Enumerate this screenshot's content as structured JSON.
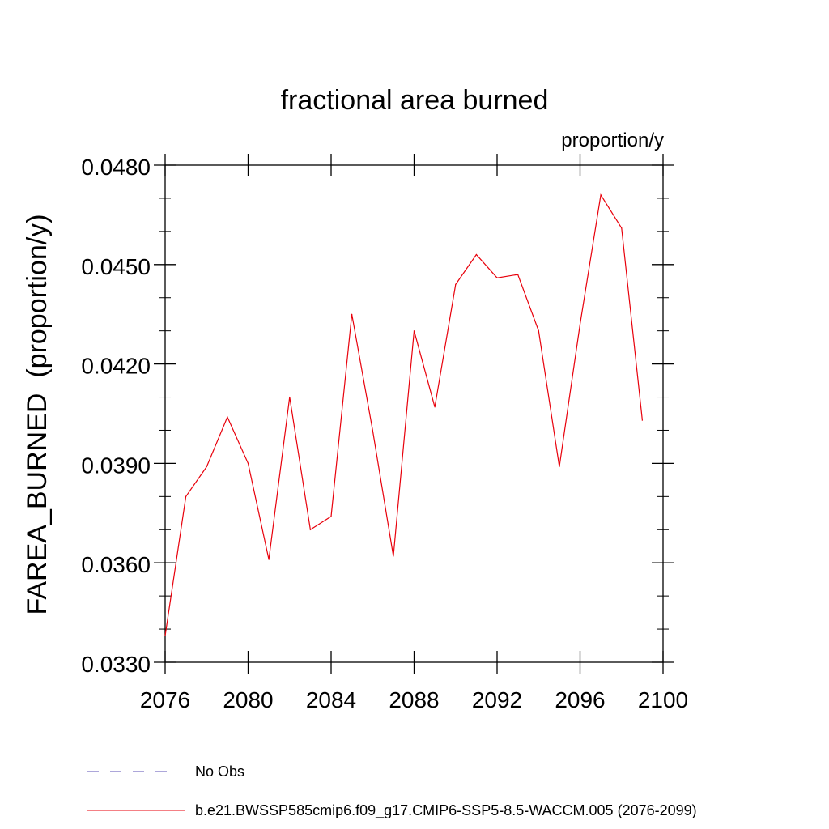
{
  "chart_data": {
    "type": "line",
    "title": "fractional area burned",
    "units_label": "proportion/y",
    "ylabel": "FAREA_BURNED  (proportion/y)",
    "xlabel": "",
    "xlim": [
      2076,
      2100
    ],
    "ylim": [
      0.033,
      0.048
    ],
    "x_ticks": [
      2076,
      2080,
      2084,
      2088,
      2092,
      2096,
      2100
    ],
    "y_ticks": [
      "0.0330",
      "0.0360",
      "0.0390",
      "0.0420",
      "0.0450",
      "0.0480"
    ],
    "y_tick_values": [
      0.033,
      0.036,
      0.039,
      0.042,
      0.045,
      0.048
    ],
    "grid": false,
    "legend_position": "bottom",
    "series": [
      {
        "name": "b.e21.BWSSP585cmip6.f09_g17.CMIP6-SSP5-8.5-WACCM.005 (2076-2099)",
        "color": "#e8000b",
        "style": "solid",
        "x": [
          2076,
          2077,
          2078,
          2079,
          2080,
          2081,
          2082,
          2083,
          2084,
          2085,
          2086,
          2087,
          2088,
          2089,
          2090,
          2091,
          2092,
          2093,
          2094,
          2095,
          2096,
          2097,
          2098,
          2099
        ],
        "values": [
          0.0338,
          0.038,
          0.0389,
          0.0404,
          0.039,
          0.0361,
          0.041,
          0.037,
          0.0374,
          0.0435,
          0.04,
          0.0362,
          0.043,
          0.0407,
          0.0444,
          0.0453,
          0.0446,
          0.0447,
          0.043,
          0.0389,
          0.0432,
          0.0471,
          0.0461,
          0.0403
        ]
      }
    ],
    "legend": [
      {
        "label": "No Obs",
        "color": "#5b4fb4",
        "style": "dashed"
      },
      {
        "label": "b.e21.BWSSP585cmip6.f09_g17.CMIP6-SSP5-8.5-WACCM.005 (2076-2099)",
        "color": "#e8000b",
        "style": "solid"
      }
    ]
  }
}
